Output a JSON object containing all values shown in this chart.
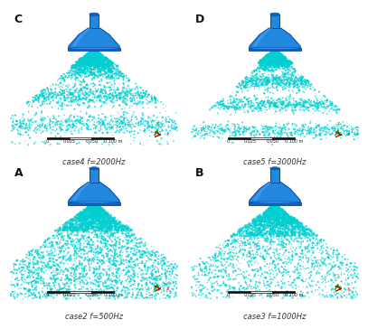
{
  "panels": [
    {
      "label": "A",
      "case": "case2 f=500Hz",
      "freq": 500,
      "seed": 11
    },
    {
      "label": "B",
      "case": "case3 f=1000Hz",
      "freq": 1000,
      "seed": 22
    },
    {
      "label": "C",
      "case": "case4 f=2000Hz",
      "freq": 2000,
      "seed": 33
    },
    {
      "label": "D",
      "case": "case5 f=3000Hz",
      "freq": 3000,
      "seed": 44
    }
  ],
  "spray_color": "#00CED1",
  "bg_color": "#ffffff",
  "inj_body": "#2288DD",
  "inj_top": "#1166BB",
  "inj_highlight": "#55AAFF",
  "inj_shadow": "#0044AA",
  "coord_green": "#00AA00",
  "coord_red": "#CC0000"
}
